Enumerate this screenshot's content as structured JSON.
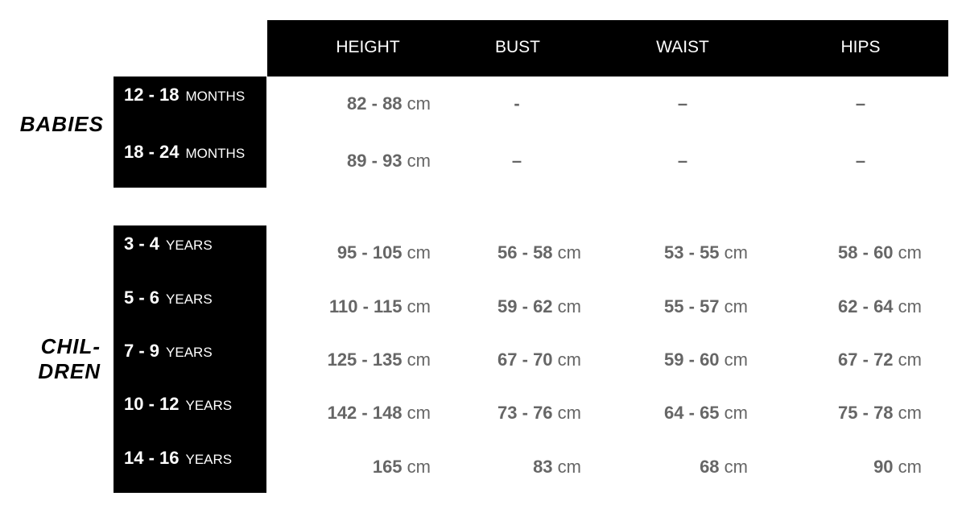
{
  "header": {
    "columns": [
      "HEIGHT",
      "BUST",
      "WAIST",
      "HIPS"
    ]
  },
  "groups": {
    "babies": {
      "label": "BABIES",
      "rows": [
        {
          "range": "12 - 18",
          "unit": "MONTHS",
          "height": "82 - 88",
          "bust": "-",
          "waist": "–",
          "hips": "–"
        },
        {
          "range": "18 - 24",
          "unit": "MONTHS",
          "height": "89 - 93",
          "bust": "–",
          "waist": "–",
          "hips": "–"
        }
      ]
    },
    "children": {
      "label_line1": "CHIL-",
      "label_line2": "DREN",
      "rows": [
        {
          "range": "3 - 4",
          "unit": "YEARS",
          "height": "95 - 105",
          "bust": "56 - 58",
          "waist": "53 - 55",
          "hips": "58 - 60"
        },
        {
          "range": "5 - 6",
          "unit": "YEARS",
          "height": "110 - 115",
          "bust": "59 - 62",
          "waist": "55 - 57",
          "hips": "62 - 64"
        },
        {
          "range": "7 - 9",
          "unit": "YEARS",
          "height": "125 - 135",
          "bust": "67 - 70",
          "waist": "59 - 60",
          "hips": "67 - 72"
        },
        {
          "range": "10 - 12",
          "unit": "YEARS",
          "height": "142 - 148",
          "bust": "73 - 76",
          "waist": "64 - 65",
          "hips": "75 - 78"
        },
        {
          "range": "14 - 16",
          "unit": "YEARS",
          "height": "165",
          "bust": "83",
          "waist": "68",
          "hips": "90"
        }
      ]
    }
  },
  "measure_unit": "cm"
}
